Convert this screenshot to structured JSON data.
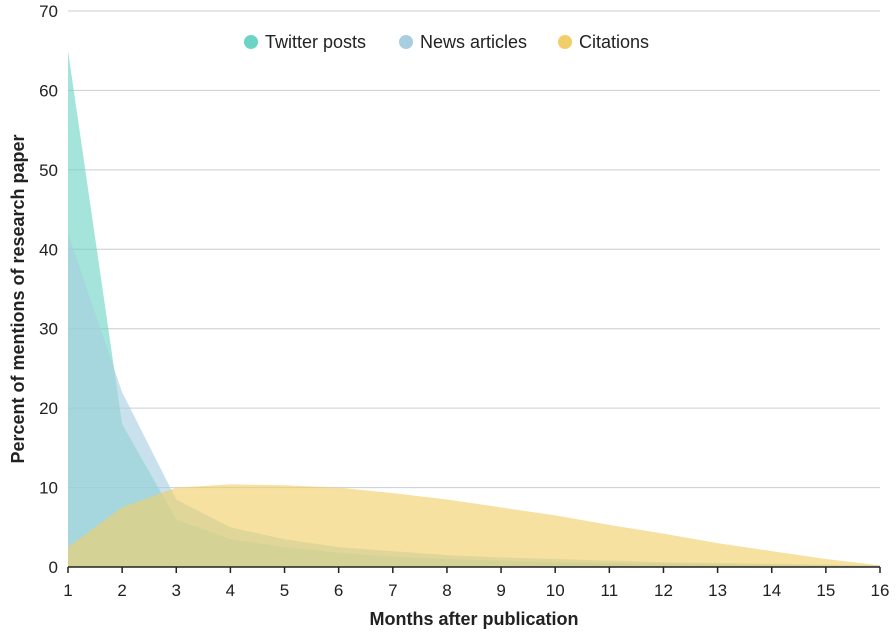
{
  "chart_data": {
    "type": "area",
    "title": "",
    "xlabel": "Months after publication",
    "ylabel": "Percent of mentions of research paper",
    "x": [
      1,
      2,
      3,
      4,
      5,
      6,
      7,
      8,
      9,
      10,
      11,
      12,
      13,
      14,
      15,
      16
    ],
    "xlim": [
      1,
      16
    ],
    "ylim": [
      0,
      70
    ],
    "yticks": [
      0,
      10,
      20,
      30,
      40,
      50,
      60,
      70
    ],
    "grid": "horizontal",
    "legend_position": "top-center",
    "series": [
      {
        "name": "Twitter posts",
        "color": "#6cd4c4",
        "values": [
          65,
          18,
          6,
          3.5,
          2.5,
          1.8,
          1.3,
          1,
          0.8,
          0.6,
          0.5,
          0.4,
          0.3,
          0.2,
          0.15,
          0.1
        ]
      },
      {
        "name": "News articles",
        "color": "#a8cfe0",
        "values": [
          42,
          22,
          8.5,
          5,
          3.5,
          2.5,
          2,
          1.5,
          1.2,
          1,
          0.8,
          0.6,
          0.5,
          0.4,
          0.3,
          0.2
        ]
      },
      {
        "name": "Citations",
        "color": "#f1ce68",
        "values": [
          2.5,
          7.5,
          10,
          10.4,
          10.3,
          10,
          9.3,
          8.5,
          7.5,
          6.5,
          5.3,
          4.2,
          3,
          2,
          1,
          0.2
        ]
      }
    ]
  }
}
